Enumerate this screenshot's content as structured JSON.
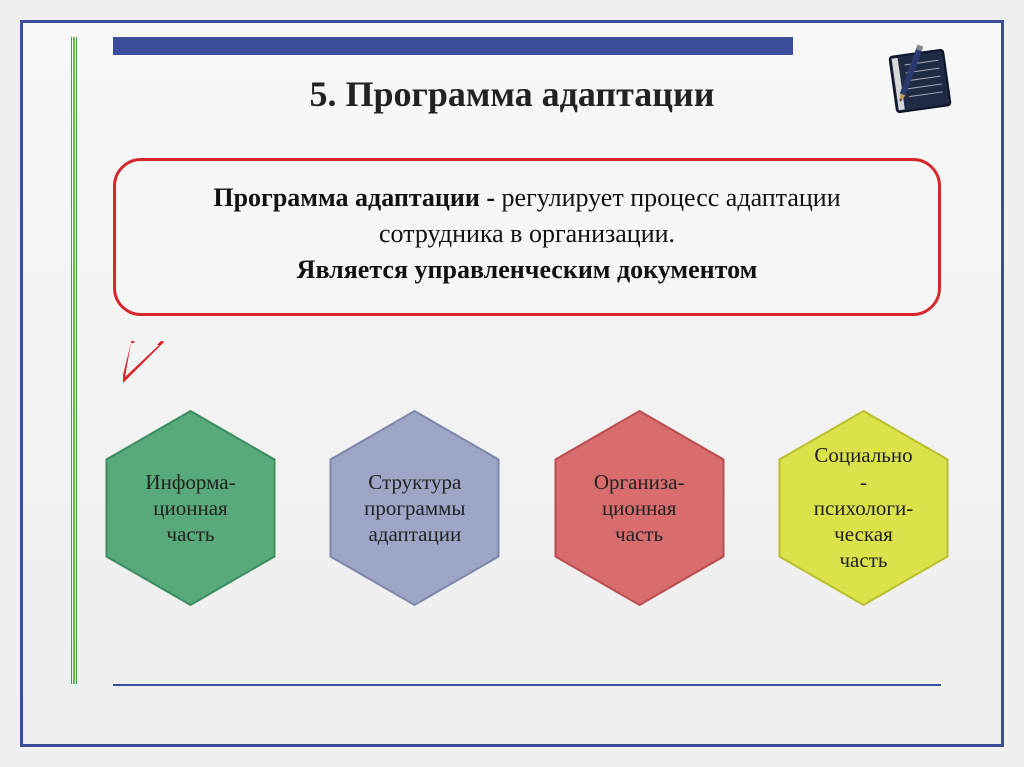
{
  "background": {
    "slide_border_color": "#3a4e9b",
    "slide_bg_top": "#f8f8f8",
    "slide_bg_bottom": "#eeeeee"
  },
  "top_bar_color": "#3a4e9b",
  "side_rail_colors": [
    "#3ea24a",
    "#6fb94a",
    "#3ea24a"
  ],
  "title": {
    "text": "5. Программа адаптации",
    "fontsize": 36,
    "color": "#222222"
  },
  "callout": {
    "border_color": "#d8262d",
    "border_width": 3,
    "line1_bold": "Программа адаптации - ",
    "line1_rest": "регулирует процесс адаптации",
    "line2": "сотрудника в организации.",
    "line3": "Является управленческим документом",
    "fontsize": 26
  },
  "hexagons": {
    "label_fontsize": 21,
    "items": [
      {
        "fill": "#58aa7a",
        "stroke": "#3b8c5f",
        "label": "Информа-\nционная\nчасть"
      },
      {
        "fill": "#9da6c7",
        "stroke": "#7e87ab",
        "label": "Структура\nпрограммы\nадаптации"
      },
      {
        "fill": "#d96d6e",
        "stroke": "#b94d4f",
        "label": "Организа-\nционная\nчасть"
      },
      {
        "fill": "#dce24a",
        "stroke": "#b9bf2e",
        "label": "Социально\n-\nпсихологи-\nческая\nчасть"
      }
    ]
  },
  "bottom_rule_color": "#3a4e9b"
}
